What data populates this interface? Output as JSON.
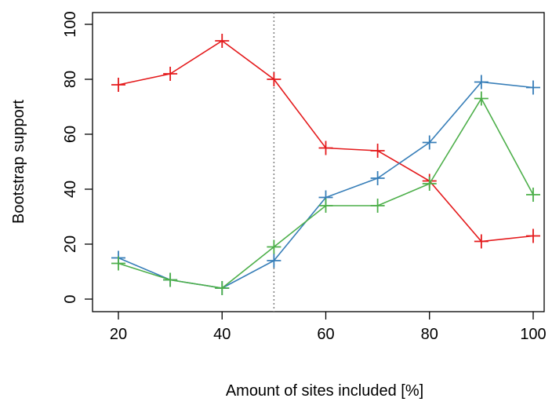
{
  "chart_data": {
    "type": "line",
    "title": "",
    "xlabel": "Amount of sites included [%]",
    "ylabel": "Bootstrap support",
    "x": [
      20,
      30,
      40,
      50,
      60,
      70,
      80,
      90,
      100
    ],
    "xlim": [
      20,
      100
    ],
    "ylim": [
      0,
      100
    ],
    "xticks": [
      20,
      40,
      60,
      80,
      100
    ],
    "yticks": [
      0,
      20,
      40,
      60,
      80,
      100
    ],
    "grid": false,
    "reference_line": {
      "x": 50,
      "style": "dotted",
      "color": "#808080"
    },
    "marker": "+",
    "series": [
      {
        "color": "#e41a1c",
        "values": [
          78,
          82,
          94,
          80,
          55,
          54,
          43,
          21,
          23
        ]
      },
      {
        "color": "#377eb8",
        "values": [
          15,
          7,
          4,
          14,
          37,
          44,
          57,
          79,
          77
        ]
      },
      {
        "color": "#4daf4a",
        "values": [
          13,
          7,
          4,
          19,
          34,
          34,
          42,
          73,
          38
        ]
      }
    ]
  }
}
